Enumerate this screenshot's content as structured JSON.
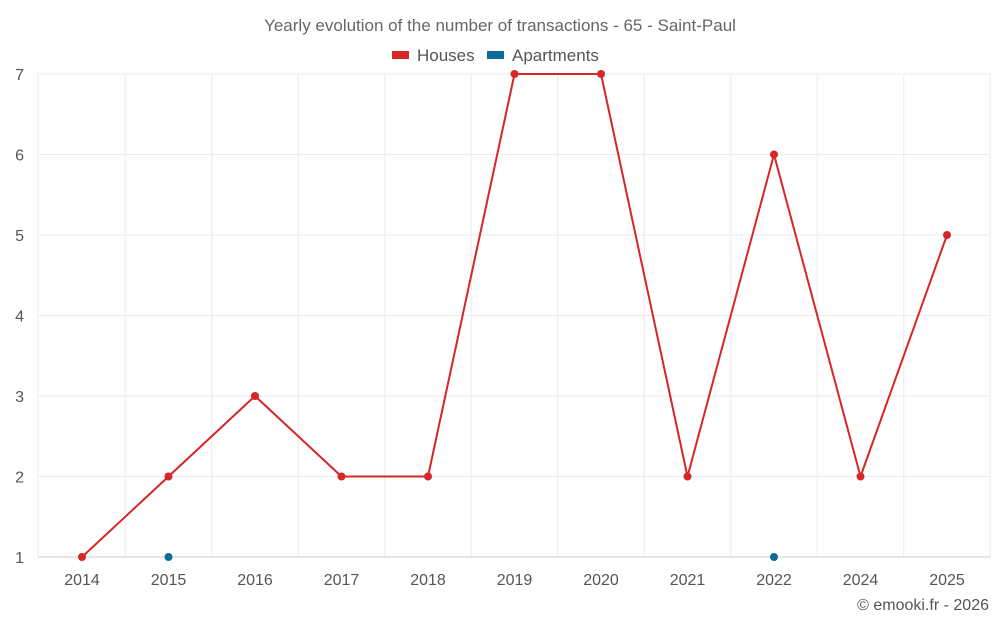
{
  "chart_data": {
    "type": "line",
    "title": "Yearly evolution of the number of transactions - 65 - Saint-Paul",
    "x": [
      "2014",
      "2015",
      "2016",
      "2017",
      "2018",
      "2019",
      "2020",
      "2021",
      "2022",
      "2024",
      "2025"
    ],
    "series": [
      {
        "name": "Houses",
        "color": "#d62728",
        "values": [
          1,
          2,
          3,
          2,
          2,
          7,
          7,
          2,
          6,
          2,
          5
        ],
        "show_line": true
      },
      {
        "name": "Apartments",
        "color": "#0d6a9a",
        "values": [
          null,
          1,
          null,
          null,
          null,
          null,
          null,
          null,
          1,
          null,
          null
        ],
        "show_line": false
      }
    ],
    "yticks": [
      "1",
      "2",
      "3",
      "4",
      "5",
      "6",
      "7"
    ],
    "ylim": [
      1,
      7
    ],
    "grid": true,
    "legend_position": "top-center",
    "credit": "© emooki.fr - 2026"
  }
}
